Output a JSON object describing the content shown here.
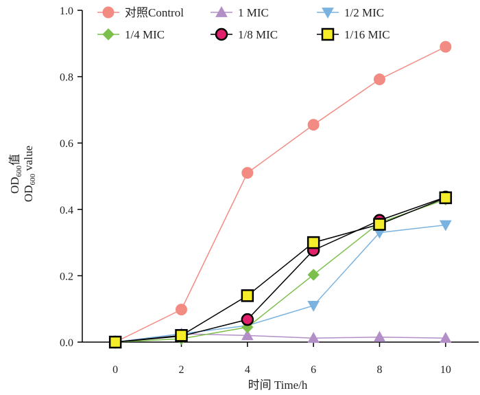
{
  "chart_data": {
    "type": "line",
    "title": "",
    "xlabel": "时间 Time/h",
    "ylabel": {
      "line1_prefix": "OD",
      "line1_sub": "600",
      "line1_suffix": "值",
      "line2_prefix": "OD",
      "line2_sub": "600",
      "line2_suffix": " value"
    },
    "x": [
      0,
      2,
      4,
      6,
      8,
      10
    ],
    "xlim": [
      -1,
      11
    ],
    "ylim": [
      0,
      1.0
    ],
    "xticks": [
      "0",
      "2",
      "4",
      "6",
      "8",
      "10"
    ],
    "yticks": [
      "0.0",
      "0.2",
      "0.4",
      "0.6",
      "0.8",
      "1.0"
    ],
    "ytick_values": [
      0,
      0.2,
      0.4,
      0.6,
      0.8,
      1.0
    ],
    "grid": false,
    "legend_position": "top",
    "series": [
      {
        "name": "对照Control",
        "marker": "circle",
        "color": "#f28b82",
        "line": "#f28b82",
        "edge": "#f28b82",
        "values": [
          0.0,
          0.098,
          0.51,
          0.655,
          0.792,
          0.89
        ]
      },
      {
        "name": "1 MIC",
        "marker": "triangle-up",
        "color": "#b38fc7",
        "line": "#b38fc7",
        "edge": "#b38fc7",
        "values": [
          0.0,
          0.025,
          0.02,
          0.012,
          0.015,
          0.012
        ]
      },
      {
        "name": "1/2 MIC",
        "marker": "triangle-down",
        "color": "#7ab3e0",
        "line": "#7ab3e0",
        "edge": "#7ab3e0",
        "values": [
          0.0,
          0.025,
          0.05,
          0.11,
          0.33,
          0.353
        ]
      },
      {
        "name": "1/4 MIC",
        "marker": "diamond",
        "color": "#7cc04b",
        "line": "#7cc04b",
        "edge": "#7cc04b",
        "values": [
          0.0,
          0.01,
          0.045,
          0.203,
          0.36,
          0.43
        ]
      },
      {
        "name": "1/8 MIC",
        "marker": "circle",
        "color": "#e0206a",
        "line": "#000000",
        "edge": "#000000",
        "values": [
          0.0,
          0.018,
          0.068,
          0.277,
          0.367,
          0.437
        ]
      },
      {
        "name": "1/16 MIC",
        "marker": "square",
        "color": "#f5ec2a",
        "line": "#000000",
        "edge": "#000000",
        "values": [
          0.0,
          0.02,
          0.14,
          0.3,
          0.355,
          0.435
        ]
      }
    ]
  }
}
